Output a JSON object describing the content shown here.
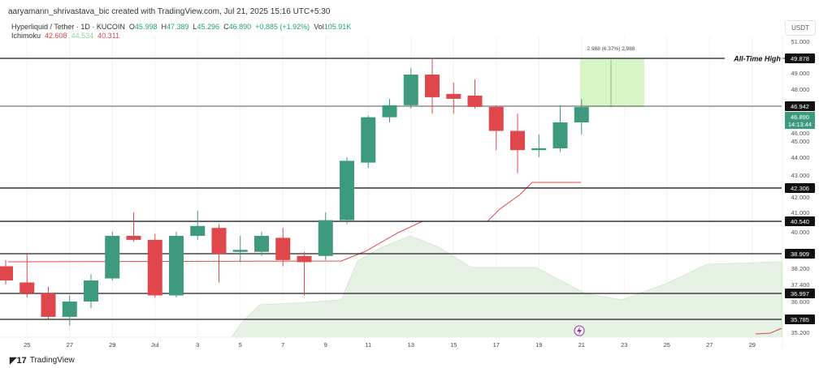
{
  "header": {
    "credit": "aaryamann_shrivastava_bic created with TradingView.com, Jul 21, 2025 15:16 UTC+5:30",
    "symbol": "Hyperliquid / Tether · 1D · KUCOIN",
    "o_label": "O",
    "o": "45.998",
    "h_label": "H",
    "h": "47.389",
    "l_label": "L",
    "l": "45.296",
    "c_label": "C",
    "c": "46.890",
    "change": "+0.885 (+1.92%)",
    "vol_label": "Vol",
    "vol": "105.91K",
    "ichimoku_label": "Ichimoku",
    "ich1": "42.608",
    "ich2": "44.534",
    "ich3": "40.311"
  },
  "currency": "USDT",
  "footer": {
    "brand": "TradingView"
  },
  "colors": {
    "up": "#3d9a7e",
    "down": "#e0474c",
    "cloud": "#e6f2e3",
    "base": "#e0474c",
    "measure": "#d8f5c8"
  },
  "chart_data": {
    "type": "candlestick",
    "x_ticks": [
      "25",
      "27",
      "29",
      "Jul",
      "3",
      "5",
      "7",
      "9",
      "11",
      "13",
      "15",
      "17",
      "19",
      "21",
      "23",
      "25",
      "27",
      "29"
    ],
    "y_ticks": [
      "51.000",
      "49.000",
      "48.000",
      "46.000",
      "45.000",
      "44.000",
      "43.000",
      "42.000",
      "41.000",
      "40.000",
      "38.200",
      "37.400",
      "36.600",
      "35.200"
    ],
    "candles": [
      {
        "d": "Jun 24",
        "o": 38.3,
        "h": 38.6,
        "l": 37.4,
        "c": 37.6
      },
      {
        "d": "Jun 25",
        "o": 37.5,
        "h": 38.9,
        "l": 36.8,
        "c": 37.0
      },
      {
        "d": "Jun 26",
        "o": 37.0,
        "h": 37.3,
        "l": 35.8,
        "c": 35.9
      },
      {
        "d": "Jun 27",
        "o": 35.9,
        "h": 36.9,
        "l": 35.5,
        "c": 36.6
      },
      {
        "d": "Jun 28",
        "o": 36.6,
        "h": 37.9,
        "l": 36.3,
        "c": 37.6
      },
      {
        "d": "Jun 29",
        "o": 37.7,
        "h": 40.0,
        "l": 37.6,
        "c": 39.8
      },
      {
        "d": "Jun 30",
        "o": 39.8,
        "h": 41.0,
        "l": 39.5,
        "c": 39.6
      },
      {
        "d": "Jul 1",
        "o": 39.6,
        "h": 39.9,
        "l": 36.8,
        "c": 36.9
      },
      {
        "d": "Jul 2",
        "o": 36.9,
        "h": 40.0,
        "l": 36.8,
        "c": 39.8
      },
      {
        "d": "Jul 3",
        "o": 39.8,
        "h": 41.1,
        "l": 39.6,
        "c": 40.3
      },
      {
        "d": "Jul 4",
        "o": 40.2,
        "h": 40.4,
        "l": 37.5,
        "c": 38.9
      },
      {
        "d": "Jul 5",
        "o": 39.0,
        "h": 39.8,
        "l": 38.5,
        "c": 39.1
      },
      {
        "d": "Jul 6",
        "o": 39.0,
        "h": 40.0,
        "l": 38.8,
        "c": 39.8
      },
      {
        "d": "Jul 7",
        "o": 39.7,
        "h": 40.2,
        "l": 38.3,
        "c": 38.6
      },
      {
        "d": "Jul 8",
        "o": 38.8,
        "h": 39.0,
        "l": 36.9,
        "c": 38.5
      },
      {
        "d": "Jul 9",
        "o": 38.8,
        "h": 41.0,
        "l": 38.6,
        "c": 40.6
      },
      {
        "d": "Jul 10",
        "o": 40.6,
        "h": 44.0,
        "l": 40.4,
        "c": 43.8
      },
      {
        "d": "Jul 11",
        "o": 43.7,
        "h": 46.4,
        "l": 43.4,
        "c": 46.3
      },
      {
        "d": "Jul 12",
        "o": 46.3,
        "h": 47.4,
        "l": 46.0,
        "c": 47.0
      },
      {
        "d": "Jul 13",
        "o": 47.0,
        "h": 49.3,
        "l": 46.8,
        "c": 48.9
      },
      {
        "d": "Jul 14",
        "o": 48.9,
        "h": 49.9,
        "l": 46.5,
        "c": 47.5
      },
      {
        "d": "Jul 15",
        "o": 47.7,
        "h": 48.4,
        "l": 46.5,
        "c": 47.4
      },
      {
        "d": "Jul 16",
        "o": 47.6,
        "h": 48.6,
        "l": 46.8,
        "c": 46.9
      },
      {
        "d": "Jul 17",
        "o": 46.9,
        "h": 47.0,
        "l": 44.4,
        "c": 45.5
      },
      {
        "d": "Jul 18",
        "o": 45.5,
        "h": 46.5,
        "l": 43.1,
        "c": 44.4
      },
      {
        "d": "Jul 19",
        "o": 44.4,
        "h": 45.3,
        "l": 44.0,
        "c": 44.5
      },
      {
        "d": "Jul 20",
        "o": 44.5,
        "h": 47.0,
        "l": 44.3,
        "c": 46.0
      },
      {
        "d": "Jul 21",
        "o": 45.998,
        "h": 47.389,
        "l": 45.296,
        "c": 46.89
      }
    ],
    "levels": [
      {
        "v": 49.878,
        "label": "49.878",
        "note": "All-Time High"
      },
      {
        "v": 46.942,
        "label": "46.942"
      },
      {
        "v": 42.306,
        "label": "42.306"
      },
      {
        "v": 40.54,
        "label": "40.540"
      },
      {
        "v": 38.909,
        "label": "38.909"
      },
      {
        "v": 36.997,
        "label": "36.997"
      },
      {
        "v": 35.785,
        "label": "35.785"
      }
    ],
    "last_price": {
      "value": "46.890",
      "countdown": "14:13:44"
    },
    "measure": {
      "from": 46.89,
      "to": 49.878,
      "label": "2.988 (6.37%) 2,988"
    }
  }
}
